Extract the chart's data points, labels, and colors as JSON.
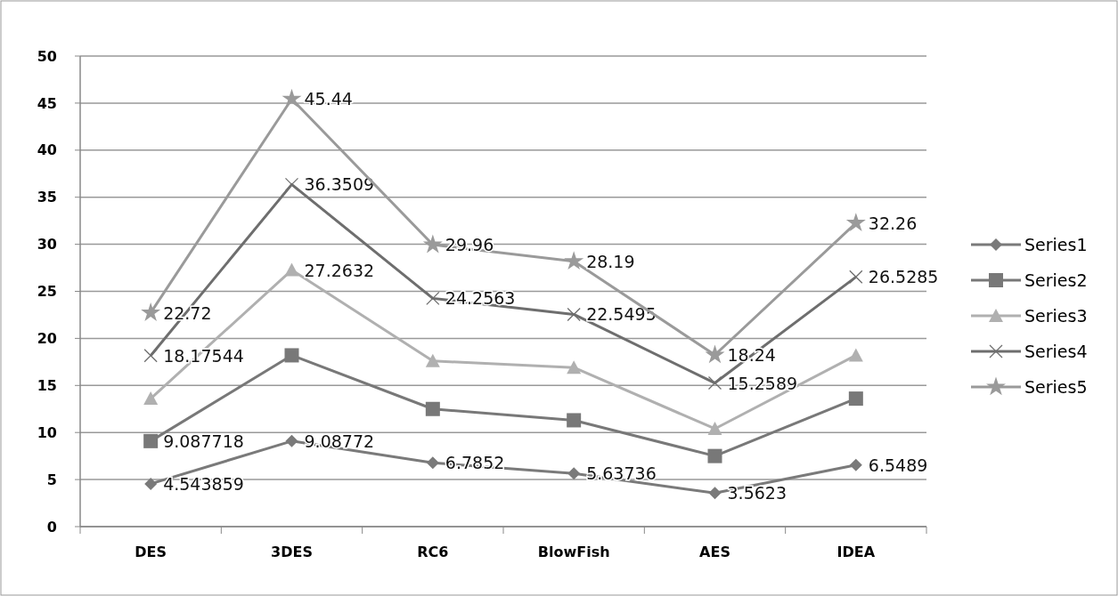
{
  "chart_data": {
    "type": "line",
    "categories": [
      "DES",
      "3DES",
      "RC6",
      "BlowFish",
      "AES",
      "IDEA"
    ],
    "series": [
      {
        "name": "Series1",
        "color": "#7a7a7a",
        "marker": "diamond",
        "values": [
          4.543859,
          9.08772,
          6.7852,
          5.63736,
          3.5623,
          6.5489
        ],
        "value_labels": [
          "4.543859",
          "9.08772",
          "6.7852",
          "5.63736",
          "3.5623",
          "6.5489"
        ]
      },
      {
        "name": "Series2",
        "color": "#787878",
        "marker": "square",
        "values": [
          9.087718,
          18.2,
          12.5,
          11.3,
          7.5,
          13.6
        ],
        "value_labels": [
          "9.087718",
          null,
          null,
          null,
          null,
          null
        ]
      },
      {
        "name": "Series3",
        "color": "#b0b0b0",
        "marker": "triangle",
        "values": [
          13.6,
          27.2632,
          17.6,
          16.9,
          10.4,
          18.2
        ],
        "value_labels": [
          null,
          "27.2632",
          null,
          null,
          null,
          null
        ]
      },
      {
        "name": "Series4",
        "color": "#6e6e6e",
        "marker": "cross",
        "values": [
          18.17544,
          36.3509,
          24.2563,
          22.5495,
          15.2589,
          26.5285
        ],
        "value_labels": [
          "18.17544",
          "36.3509",
          "24.2563",
          "22.5495",
          "15.2589",
          "26.5285"
        ]
      },
      {
        "name": "Series5",
        "color": "#9a9a9a",
        "marker": "star",
        "values": [
          22.72,
          45.44,
          29.96,
          28.19,
          18.24,
          32.26
        ],
        "value_labels": [
          "22.72",
          "45.44",
          "29.96",
          "28.19",
          "18.24",
          "32.26"
        ]
      }
    ],
    "ylim": [
      0,
      50
    ],
    "yticks": [
      0,
      5,
      10,
      15,
      20,
      25,
      30,
      35,
      40,
      45,
      50
    ],
    "grid": "y",
    "legend": "right"
  }
}
